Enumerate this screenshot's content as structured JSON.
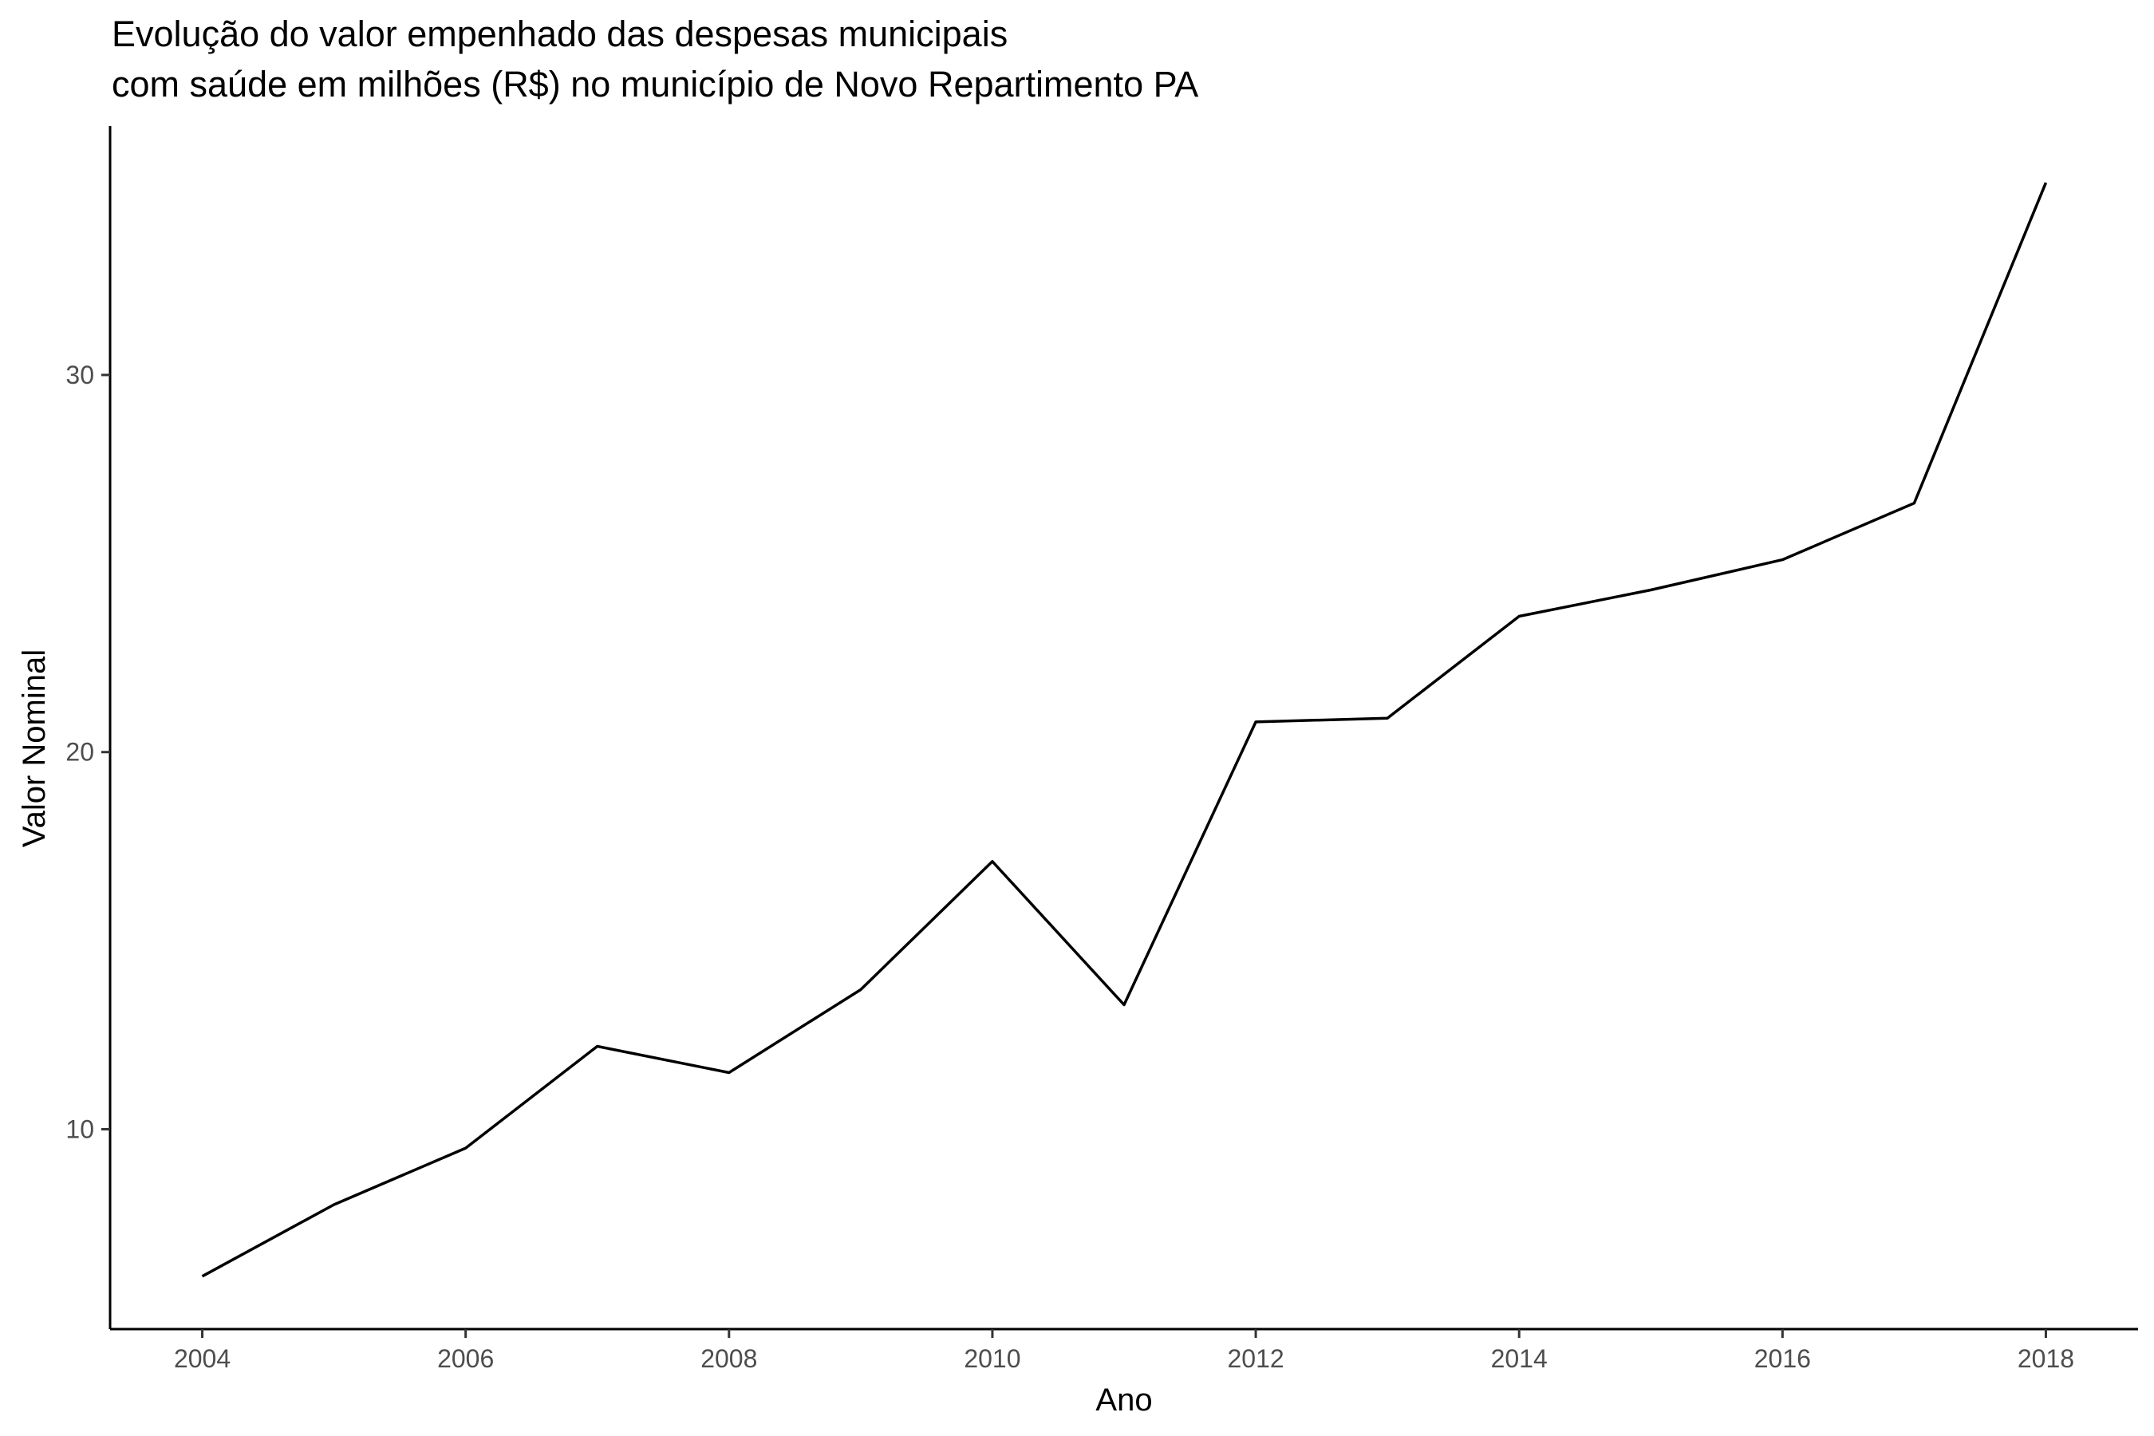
{
  "chart_data": {
    "type": "line",
    "title_lines": [
      "Evolução do valor empenhado das despesas municipais",
      "com saúde em milhões (R$) no município de Novo Repartimento PA"
    ],
    "xlabel": "Ano",
    "ylabel": "Valor Nominal",
    "x": [
      2004,
      2005,
      2006,
      2007,
      2008,
      2009,
      2010,
      2011,
      2012,
      2013,
      2014,
      2015,
      2016,
      2017,
      2018
    ],
    "series": [
      {
        "values": [
          6.1,
          8.0,
          9.5,
          12.2,
          11.5,
          13.7,
          17.1,
          13.3,
          20.8,
          20.9,
          23.6,
          24.3,
          25.1,
          26.6,
          35.1
        ]
      }
    ],
    "xticks": [
      "2004",
      "2006",
      "2008",
      "2010",
      "2012",
      "2014",
      "2016",
      "2018"
    ],
    "yticks": [
      "10",
      "20",
      "30"
    ],
    "xlim": [
      2003.3,
      2018.7
    ],
    "ylim": [
      4.7,
      36.6
    ],
    "grid": false,
    "legend": "none",
    "line_color": "#000000"
  }
}
